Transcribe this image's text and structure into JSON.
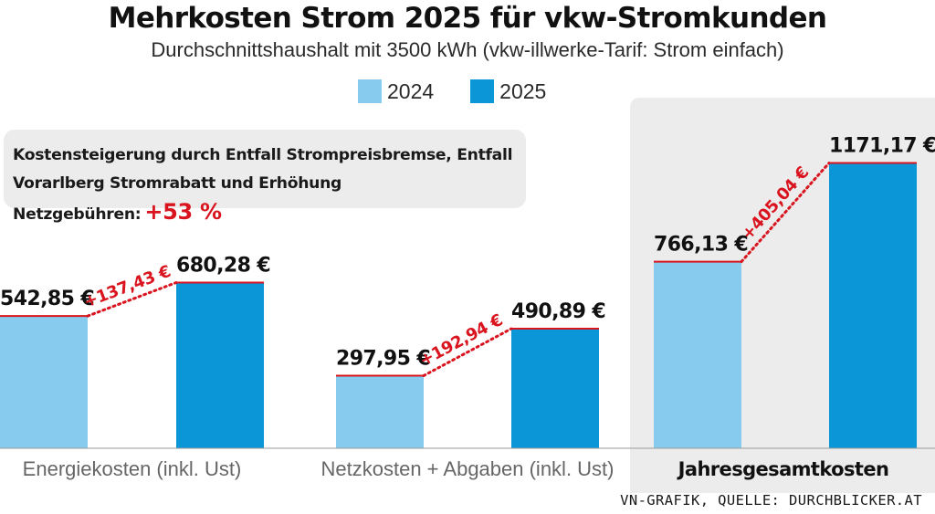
{
  "title": "Mehrkosten Strom 2025 für vkw-Stromkunden",
  "subtitle": "Durchschnittshaushalt mit 3500 kWh (vkw-illwerke-Tarif: Strom einfach)",
  "legend": [
    {
      "label": "2024",
      "color": "#87cbef"
    },
    {
      "label": "2025",
      "color": "#0b96d8"
    }
  ],
  "callout": {
    "line1": "Kostensteigerung durch Entfall Strompreisbremse, Entfall",
    "line2": "Vorarlberg Stromrabatt und Erhöhung Netzgebühren:",
    "percent": "+53 %"
  },
  "credit": "VN-GRAFIK, QUELLE: DURCHBLICKER.AT",
  "colors": {
    "bar2024": "#87cbef",
    "bar2025": "#0b96d8",
    "accent": "#d9141e",
    "highlight": "#ececec"
  },
  "chart_data": {
    "type": "bar",
    "title": "Mehrkosten Strom 2025 für vkw-Stromkunden",
    "unit": "€",
    "categories": [
      "Energiekosten (inkl. Ust)",
      "Netzkosten + Abgaben (inkl. Ust)",
      "Jahresgesamtkosten"
    ],
    "highlight_category": "Jahresgesamtkosten",
    "series": [
      {
        "name": "2024",
        "values": [
          542.85,
          297.95,
          766.13
        ],
        "labels": [
          "542,85 €",
          "297,95 €",
          "766,13 €"
        ]
      },
      {
        "name": "2025",
        "values": [
          680.28,
          490.89,
          1171.17
        ],
        "labels": [
          "680,28 €",
          "490,89 €",
          "1171,17 €"
        ]
      }
    ],
    "differences": [
      "+137,43 €",
      "+192,94 €",
      "+405,04 €"
    ],
    "legend_position": "top-center",
    "grid": false,
    "value_labels": true
  }
}
